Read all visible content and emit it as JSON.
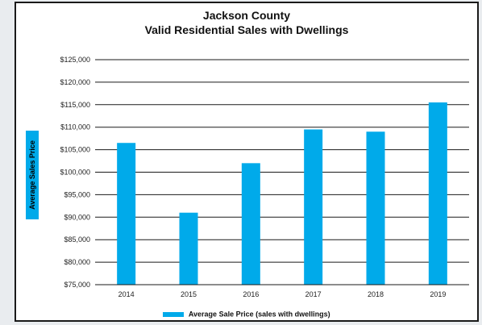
{
  "chart_data": {
    "type": "bar",
    "title": [
      "Jackson County",
      "Valid Residential Sales with Dwellings"
    ],
    "ylabel": "Average Sales Price",
    "xlabel": "",
    "categories": [
      "2014",
      "2015",
      "2016",
      "2017",
      "2018",
      "2019"
    ],
    "series": [
      {
        "name": "Average Sale Price (sales with dwellings)",
        "values": [
          106500,
          91000,
          102000,
          109500,
          109000,
          115500
        ],
        "color": "#00aaea"
      }
    ],
    "ylim": [
      75000,
      125000
    ],
    "yticks": [
      75000,
      80000,
      85000,
      90000,
      95000,
      100000,
      105000,
      110000,
      115000,
      120000,
      125000
    ],
    "ytick_labels": [
      "$75,000",
      "$80,000",
      "$85,000",
      "$90,000",
      "$95,000",
      "$100,000",
      "$105,000",
      "$110,000",
      "$115,000",
      "$120,000",
      "$125,000"
    ],
    "grid": true,
    "legend_position": "bottom-center"
  }
}
